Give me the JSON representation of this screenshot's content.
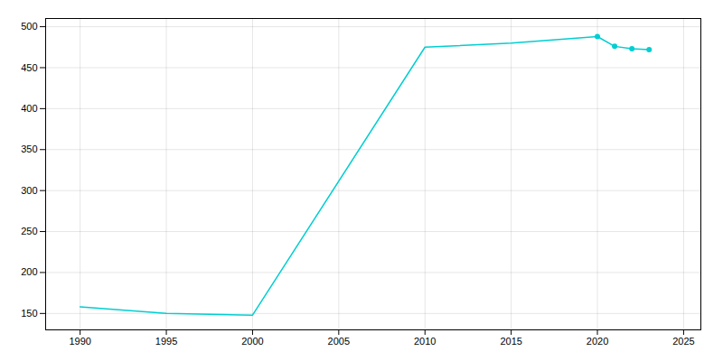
{
  "chart_data": {
    "type": "line",
    "x": [
      1990,
      1995,
      2000,
      2010,
      2015,
      2020,
      2021,
      2022,
      2023
    ],
    "values": [
      158,
      150,
      148,
      475,
      480,
      488,
      476,
      473,
      472
    ],
    "color": "#00CED1",
    "marker": "circle",
    "marker_x": [
      2020,
      2021,
      2022,
      2023
    ],
    "xlim": [
      1988,
      2026
    ],
    "ylim": [
      130,
      510
    ],
    "xticks": [
      1990,
      1995,
      2000,
      2005,
      2010,
      2015,
      2020,
      2025
    ],
    "yticks": [
      150,
      200,
      250,
      300,
      350,
      400,
      450,
      500
    ],
    "grid": true
  }
}
